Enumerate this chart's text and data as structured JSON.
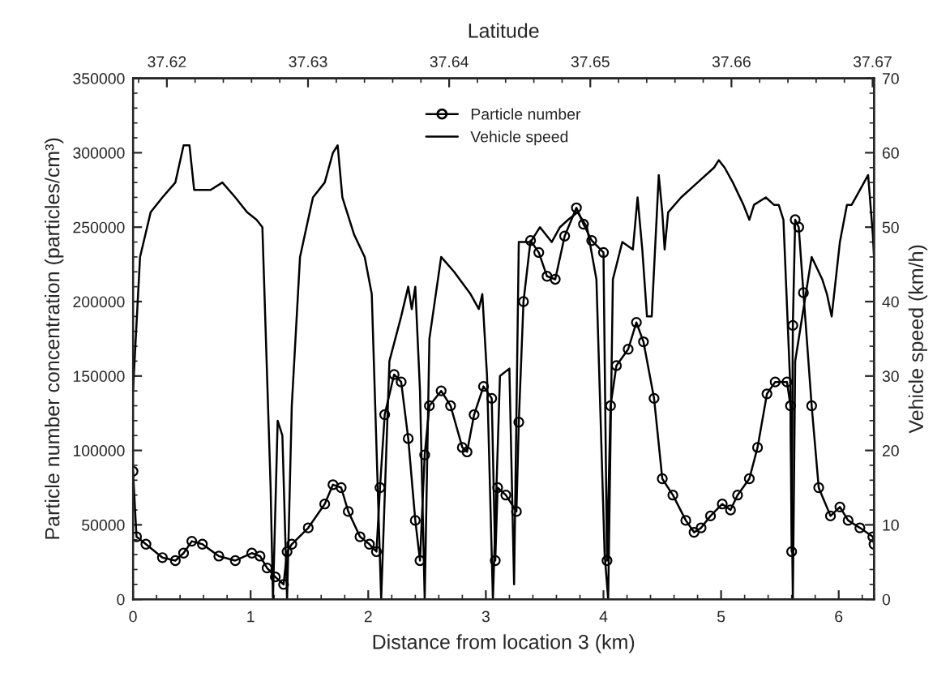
{
  "chart_data": {
    "type": "line",
    "xlabel": "Distance from location 3 (km)",
    "ylabel": "Particle number concentration (particles/cm³)",
    "y2label": "Vehicle speed (km/h)",
    "x2label": "Latitude",
    "xlim": [
      0,
      6.3
    ],
    "xticks": [
      0,
      1,
      2,
      3,
      4,
      5,
      6
    ],
    "ylim": [
      0,
      350000
    ],
    "yticks": [
      0,
      50000,
      100000,
      150000,
      200000,
      250000,
      300000,
      350000
    ],
    "y2lim": [
      0,
      70
    ],
    "y2ticks": [
      0,
      10,
      20,
      30,
      40,
      50,
      60,
      70
    ],
    "x2lim": [
      37.6176,
      37.6701
    ],
    "x2ticks": [
      37.62,
      37.63,
      37.64,
      37.65,
      37.66,
      37.67
    ],
    "legend": "top",
    "grid": false,
    "series": [
      {
        "name": "Particle number",
        "color": "#000000",
        "marker": "circle",
        "line_style": "solid",
        "x": [
          0,
          0.03,
          0.11,
          0.25,
          0.36,
          0.43,
          0.5,
          0.59,
          0.73,
          0.87,
          1.01,
          1.08,
          1.14,
          1.21,
          1.28,
          1.31,
          1.35,
          1.49,
          1.63,
          1.7,
          1.77,
          1.83,
          1.93,
          2.01,
          2.07,
          2.1,
          2.14,
          2.22,
          2.28,
          2.34,
          2.4,
          2.44,
          2.48,
          2.52,
          2.62,
          2.7,
          2.8,
          2.84,
          2.9,
          2.98,
          3.05,
          3.08,
          3.1,
          3.17,
          3.26,
          3.28,
          3.32,
          3.38,
          3.45,
          3.52,
          3.59,
          3.67,
          3.77,
          3.83,
          3.9,
          4.0,
          4.03,
          4.06,
          4.11,
          4.21,
          4.28,
          4.34,
          4.43,
          4.5,
          4.59,
          4.7,
          4.77,
          4.83,
          4.91,
          5.01,
          5.08,
          5.14,
          5.24,
          5.31,
          5.39,
          5.46,
          5.56,
          5.59,
          5.6,
          5.61,
          5.63,
          5.66,
          5.7,
          5.77,
          5.83,
          5.93,
          6.01,
          6.08,
          6.18,
          6.29,
          6.3
        ],
        "values": [
          86000,
          42000,
          37000,
          28000,
          26000,
          31000,
          39000,
          37000,
          29000,
          26000,
          31000,
          29000,
          21000,
          15000,
          10000,
          32000,
          37000,
          48000,
          64000,
          77000,
          75000,
          59000,
          42000,
          37000,
          32000,
          75000,
          124000,
          151000,
          146000,
          108000,
          53000,
          26000,
          97000,
          130000,
          140000,
          130000,
          102000,
          99000,
          124000,
          143000,
          135000,
          26000,
          75000,
          70000,
          59000,
          119000,
          200000,
          241000,
          233000,
          217000,
          215000,
          244000,
          263000,
          252000,
          241000,
          233000,
          26000,
          130000,
          157000,
          168000,
          186000,
          173000,
          135000,
          81000,
          70000,
          53000,
          45000,
          48000,
          56000,
          64000,
          60000,
          70000,
          81000,
          102000,
          138000,
          146000,
          146000,
          130000,
          32000,
          184000,
          255000,
          250000,
          206000,
          130000,
          75000,
          56000,
          62000,
          53000,
          48000,
          42000,
          37000
        ]
      },
      {
        "name": "Vehicle speed",
        "color": "#000000",
        "marker": "none",
        "line_style": "solid",
        "axis": "y2",
        "x": [
          0,
          0.06,
          0.15,
          0.25,
          0.36,
          0.43,
          0.48,
          0.52,
          0.66,
          0.76,
          0.87,
          0.97,
          1.05,
          1.1,
          1.17,
          1.19,
          1.23,
          1.27,
          1.31,
          1.35,
          1.42,
          1.53,
          1.63,
          1.7,
          1.74,
          1.78,
          1.88,
          1.97,
          2.03,
          2.11,
          2.18,
          2.28,
          2.34,
          2.37,
          2.4,
          2.44,
          2.48,
          2.52,
          2.62,
          2.73,
          2.87,
          2.94,
          2.97,
          3.01,
          3.06,
          3.12,
          3.2,
          3.24,
          3.28,
          3.38,
          3.46,
          3.56,
          3.63,
          3.7,
          3.78,
          3.86,
          3.94,
          4.01,
          4.04,
          4.08,
          4.16,
          4.25,
          4.29,
          4.33,
          4.37,
          4.41,
          4.47,
          4.5,
          4.52,
          4.55,
          4.66,
          4.8,
          4.94,
          4.98,
          5.03,
          5.1,
          5.19,
          5.24,
          5.28,
          5.38,
          5.45,
          5.49,
          5.53,
          5.59,
          5.61,
          5.63,
          5.77,
          5.86,
          5.9,
          5.94,
          6.01,
          6.07,
          6.11,
          6.18,
          6.25,
          6.29,
          6.3
        ],
        "values": [
          28,
          46,
          52,
          54,
          56,
          61,
          61,
          55,
          55,
          56,
          54,
          52,
          51,
          50,
          15,
          0,
          24,
          22,
          0,
          26,
          46,
          54,
          56,
          60,
          61,
          54,
          49,
          46,
          41,
          0,
          32,
          38,
          42,
          39,
          42,
          28,
          0,
          35,
          46,
          44,
          41,
          39,
          41,
          30,
          0,
          30,
          31,
          2,
          48,
          48,
          50,
          48,
          50,
          51,
          52,
          50,
          43,
          6,
          0,
          43,
          48,
          47,
          54,
          47,
          38,
          38,
          57,
          52,
          47,
          52,
          54,
          56,
          58,
          59,
          58,
          56,
          53,
          51,
          53,
          54,
          53,
          53,
          51,
          28,
          0,
          32,
          46,
          43,
          41,
          38,
          48,
          53,
          53,
          55,
          57,
          49,
          46
        ]
      }
    ]
  }
}
